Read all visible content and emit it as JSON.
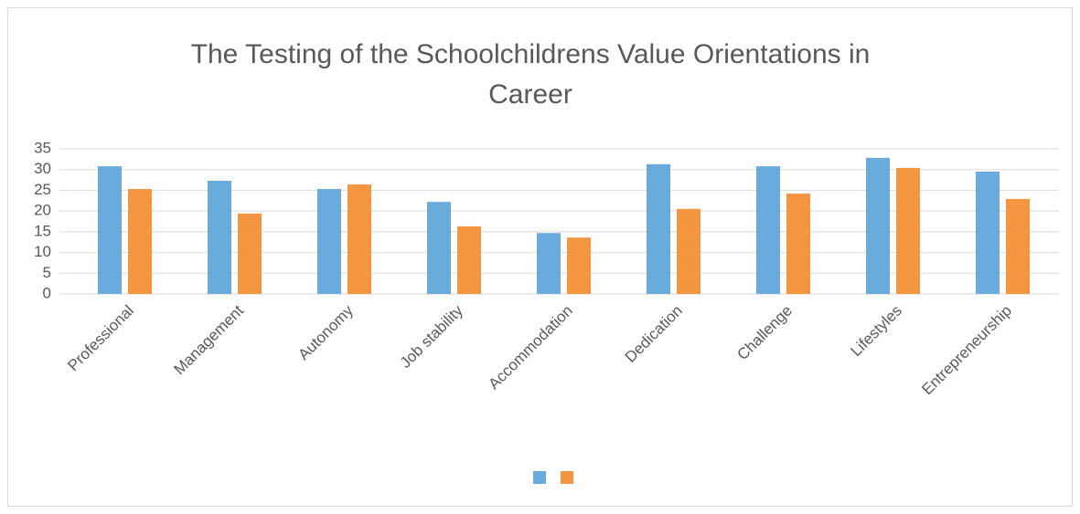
{
  "chart_data": {
    "type": "bar",
    "title": "The Testing of the Schoolchildrens Value Orientations in Career",
    "categories": [
      "Professional",
      "Management",
      "Autonomy",
      "Job stability",
      "Accommodation",
      "Dedication",
      "Challenge",
      "Lifestyles",
      "Entrepreneurship"
    ],
    "series": [
      {
        "color": "#6aabdd",
        "values": [
          30.8,
          27.3,
          25.3,
          22.2,
          14.7,
          31.3,
          30.8,
          32.8,
          29.5
        ]
      },
      {
        "color": "#f49542",
        "values": [
          25.3,
          19.4,
          26.4,
          16.3,
          13.6,
          20.5,
          24.2,
          30.4,
          22.9
        ]
      }
    ],
    "ylim": [
      0,
      35
    ],
    "yticks": [
      0,
      5,
      10,
      15,
      20,
      25,
      30,
      35
    ],
    "grid": true
  }
}
